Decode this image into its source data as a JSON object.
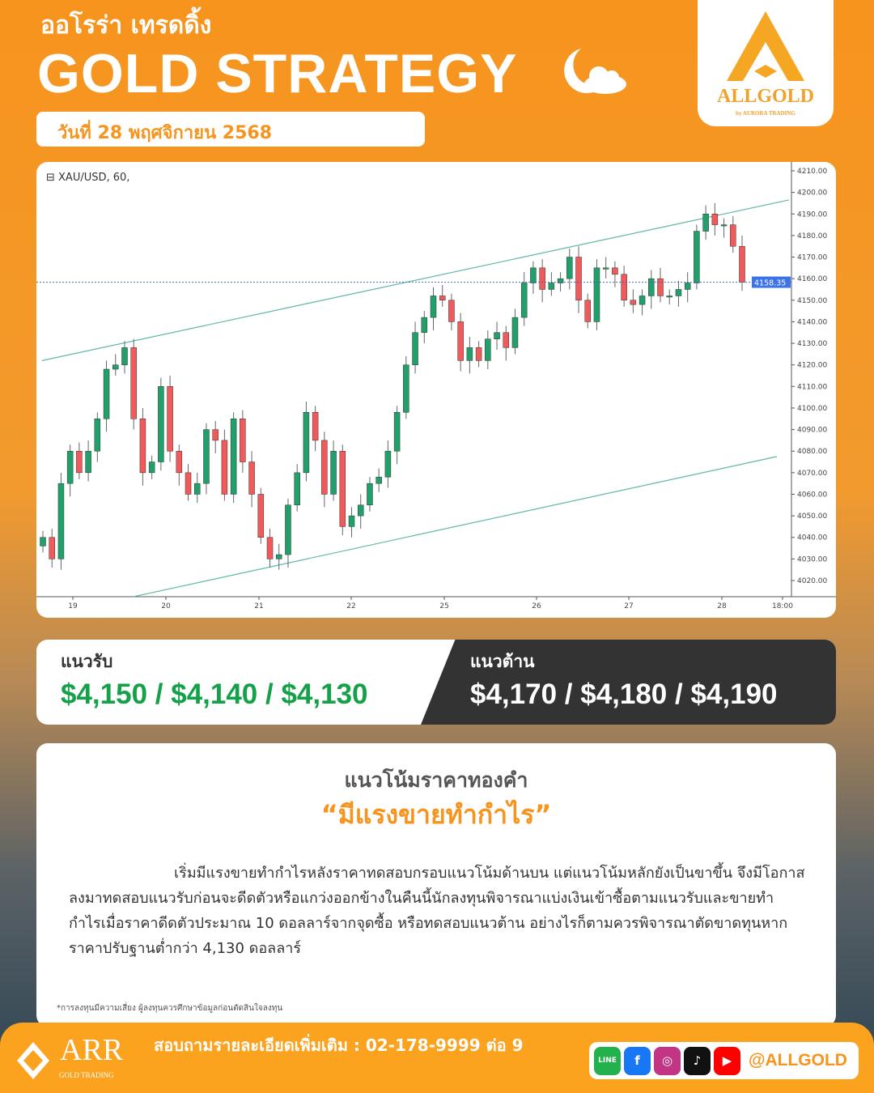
{
  "header": {
    "brand_th": "ออโรร่า เทรดดิ้ง",
    "title": "GOLD STRATEGY",
    "date": "วันที่ 28 พฤศจิกายน 2568",
    "icon": "moon-cloud-icon"
  },
  "logo": {
    "name": "ALLGOLD",
    "sub": "by AURORA TRADING"
  },
  "chart_data": {
    "type": "candlestick",
    "symbol": "XAU/USD, 60,",
    "ylim": [
      4015,
      4212
    ],
    "yticks": [
      "4210.00",
      "4200.00",
      "4190.00",
      "4180.00",
      "4170.00",
      "4160.00",
      "4150.00",
      "4140.00",
      "4130.00",
      "4120.00",
      "4110.00",
      "4100.00",
      "4090.00",
      "4080.00",
      "4070.00",
      "4060.00",
      "4050.00",
      "4040.00",
      "4030.00",
      "4020.00"
    ],
    "xticks": [
      "19",
      "20",
      "21",
      "22",
      "25",
      "26",
      "27",
      "28",
      "18:00"
    ],
    "last_price": "4158.35",
    "closes": [
      4040,
      4030,
      4065,
      4080,
      4070,
      4080,
      4095,
      4118,
      4120,
      4128,
      4095,
      4070,
      4075,
      4110,
      4080,
      4070,
      4060,
      4065,
      4090,
      4085,
      4060,
      4095,
      4075,
      4060,
      4040,
      4030,
      4032,
      4055,
      4070,
      4098,
      4085,
      4060,
      4080,
      4045,
      4050,
      4055,
      4065,
      4068,
      4080,
      4098,
      4120,
      4135,
      4142,
      4152,
      4150,
      4140,
      4122,
      4128,
      4122,
      4132,
      4135,
      4128,
      4142,
      4158,
      4165,
      4155,
      4158,
      4160,
      4170,
      4150,
      4140,
      4165,
      4165,
      4162,
      4150,
      4148,
      4152,
      4160,
      4152,
      4152,
      4155,
      4158,
      4182,
      4190,
      4185,
      4185,
      4175,
      4158.35
    ],
    "channel_upper": [
      4122,
      4196.5
    ],
    "channel_lower": [
      4012.5,
      4077.5
    ],
    "colors": {
      "up": "#22a06b",
      "down": "#f05a5a",
      "channel": "#5fb7a6",
      "price_tag": "#3b73e8"
    }
  },
  "levels": {
    "support_label": "แนวรับ",
    "support_values": "$4,150 / $4,140 / $4,130",
    "resistance_label": "แนวต้าน",
    "resistance_values": "$4,170 / $4,180 / $4,190"
  },
  "analysis": {
    "heading": "แนวโน้มราคาทองคำ",
    "quote": "“มีแรงขายทำกำไร”",
    "body": "เริ่มมีแรงขายทำกำไรหลังราคาทดสอบกรอบแนวโน้มด้านบน แต่แนวโน้มหลักยังเป็นขาขึ้น จึงมีโอกาสลงมาทดสอบแนวรับก่อนจะดีดตัวหรือแกว่งออกข้างในคืนนี้นักลงทุนพิจารณาแบ่งเงินเข้าซื้อตามแนวรับและขายทำกำไรเมื่อราคาดีดตัวประมาณ 10 ดอลลาร์จากจุดซื้อ หรือทดสอบแนวต้าน อย่างไรก็ตามควรพิจารณาตัดขาดทุนหากราคาปรับฐานต่ำกว่า 4,130 ดอลลาร์",
    "disclaimer": "*การลงทุนมีความเสี่ยง ผู้ลงทุนควรศึกษาข้อมูลก่อนตัดสินใจลงทุน"
  },
  "footer": {
    "arr": "ARR",
    "arr_sub": "GOLD TRADING",
    "contact": "สอบถามรายละเอียดเพิ่มเติม : 02-178-9999 ต่อ 9",
    "handle": "@ALLGOLD",
    "social": [
      {
        "icon": "line-icon",
        "text": "LINE",
        "color": "#22b14c"
      },
      {
        "icon": "facebook-icon",
        "text": "f",
        "color": "#1877f2"
      },
      {
        "icon": "instagram-icon",
        "text": "◎",
        "color": "#c13584"
      },
      {
        "icon": "tiktok-icon",
        "text": "♪",
        "color": "#111"
      },
      {
        "icon": "youtube-icon",
        "text": "▶",
        "color": "#f00"
      }
    ]
  }
}
